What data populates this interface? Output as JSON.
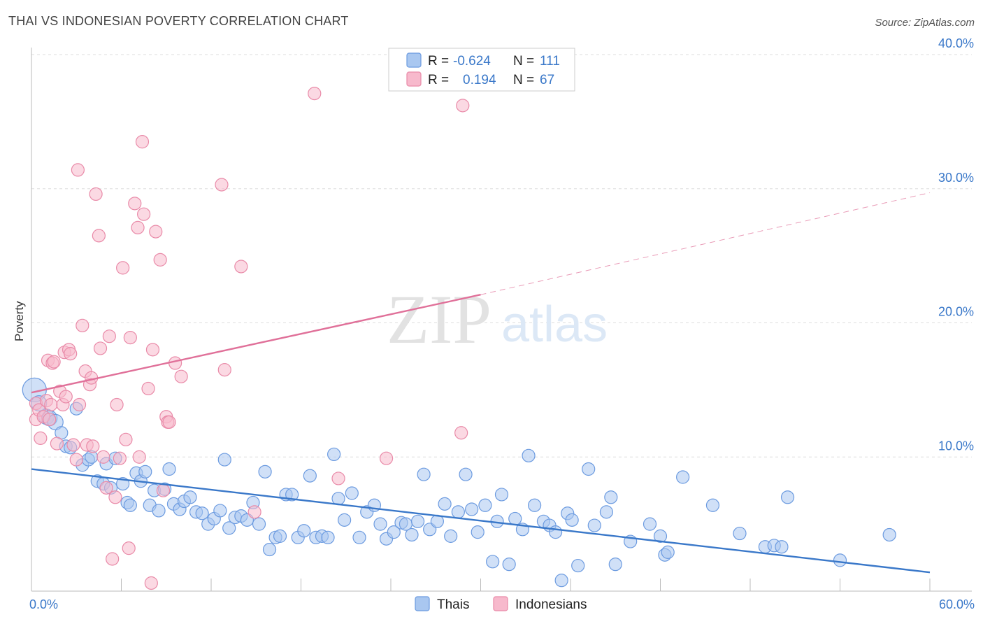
{
  "header": {
    "title": "THAI VS INDONESIAN POVERTY CORRELATION CHART",
    "source": "Source: ZipAtlas.com"
  },
  "watermark": {
    "zip": "ZIP",
    "atlas": "atlas"
  },
  "legend_stats": [
    {
      "r_label": "R =",
      "r_value": "-0.624",
      "n_label": "N =",
      "n_value": "111",
      "color": "#a9c7f0",
      "stroke": "#6c9be0"
    },
    {
      "r_label": "R =",
      "r_value": "0.194",
      "n_label": "N =",
      "n_value": "67",
      "color": "#f7b9cc",
      "stroke": "#e98aa8"
    }
  ],
  "chart_data": {
    "type": "scatter",
    "title": "THAI VS INDONESIAN POVERTY CORRELATION CHART",
    "xlabel": "",
    "ylabel": "Poverty",
    "xlim": [
      0,
      60
    ],
    "ylim": [
      0,
      40
    ],
    "x_tick_labels": [
      "0.0%",
      "60.0%"
    ],
    "y_ticks": [
      10,
      20,
      30,
      40
    ],
    "y_tick_labels": [
      "10.0%",
      "20.0%",
      "30.0%",
      "40.0%"
    ],
    "grid": true,
    "legend_position": "bottom",
    "series": [
      {
        "name": "Thais",
        "color": "#a9c7f0",
        "stroke": "#6c9be0",
        "trend": {
          "x": [
            0,
            60
          ],
          "y": [
            9.1,
            1.4
          ],
          "style": "solid"
        },
        "points": [
          [
            0.2,
            15.0
          ],
          [
            0.5,
            14.0
          ],
          [
            1.0,
            13.0
          ],
          [
            1.2,
            12.9
          ],
          [
            1.6,
            12.6
          ],
          [
            2.0,
            11.8
          ],
          [
            2.3,
            10.8
          ],
          [
            2.6,
            10.7
          ],
          [
            3.0,
            13.6
          ],
          [
            3.4,
            9.4
          ],
          [
            3.8,
            9.8
          ],
          [
            4.0,
            10.0
          ],
          [
            4.4,
            8.2
          ],
          [
            4.8,
            8.0
          ],
          [
            5.0,
            9.5
          ],
          [
            5.3,
            7.7
          ],
          [
            5.6,
            9.9
          ],
          [
            6.1,
            8.0
          ],
          [
            6.4,
            6.6
          ],
          [
            6.6,
            6.4
          ],
          [
            7.0,
            8.8
          ],
          [
            7.3,
            8.2
          ],
          [
            7.6,
            8.9
          ],
          [
            7.9,
            6.4
          ],
          [
            8.2,
            7.5
          ],
          [
            8.5,
            6.0
          ],
          [
            8.9,
            7.6
          ],
          [
            9.2,
            9.1
          ],
          [
            9.5,
            6.5
          ],
          [
            9.9,
            6.1
          ],
          [
            10.2,
            6.7
          ],
          [
            10.6,
            7.0
          ],
          [
            11.0,
            5.9
          ],
          [
            11.4,
            5.8
          ],
          [
            11.8,
            5.0
          ],
          [
            12.2,
            5.4
          ],
          [
            12.6,
            6.0
          ],
          [
            12.9,
            9.8
          ],
          [
            13.2,
            4.7
          ],
          [
            13.6,
            5.5
          ],
          [
            14.0,
            5.6
          ],
          [
            14.4,
            5.3
          ],
          [
            14.8,
            6.6
          ],
          [
            15.2,
            5.0
          ],
          [
            15.6,
            8.9
          ],
          [
            15.9,
            3.1
          ],
          [
            16.3,
            4.0
          ],
          [
            16.6,
            4.1
          ],
          [
            17.0,
            7.2
          ],
          [
            17.4,
            7.2
          ],
          [
            17.8,
            4.0
          ],
          [
            18.2,
            4.5
          ],
          [
            18.6,
            8.6
          ],
          [
            19.0,
            4.0
          ],
          [
            19.4,
            4.1
          ],
          [
            19.8,
            4.0
          ],
          [
            20.2,
            10.2
          ],
          [
            20.5,
            6.9
          ],
          [
            20.9,
            5.3
          ],
          [
            21.4,
            7.3
          ],
          [
            21.9,
            4.0
          ],
          [
            22.4,
            5.9
          ],
          [
            22.9,
            6.4
          ],
          [
            23.3,
            5.0
          ],
          [
            23.7,
            3.9
          ],
          [
            24.2,
            4.4
          ],
          [
            24.7,
            5.1
          ],
          [
            25.0,
            5.0
          ],
          [
            25.4,
            4.2
          ],
          [
            25.8,
            5.2
          ],
          [
            26.2,
            8.7
          ],
          [
            26.6,
            4.6
          ],
          [
            27.1,
            5.2
          ],
          [
            27.6,
            6.5
          ],
          [
            28.0,
            4.1
          ],
          [
            28.5,
            5.9
          ],
          [
            29.0,
            8.7
          ],
          [
            29.4,
            6.1
          ],
          [
            29.8,
            4.4
          ],
          [
            30.3,
            6.4
          ],
          [
            30.8,
            2.2
          ],
          [
            31.1,
            5.2
          ],
          [
            31.4,
            7.2
          ],
          [
            31.9,
            2.0
          ],
          [
            32.3,
            5.4
          ],
          [
            32.8,
            4.6
          ],
          [
            33.2,
            10.1
          ],
          [
            33.6,
            6.4
          ],
          [
            34.2,
            5.2
          ],
          [
            34.6,
            4.9
          ],
          [
            35.0,
            4.4
          ],
          [
            35.4,
            0.8
          ],
          [
            35.8,
            5.8
          ],
          [
            36.1,
            5.3
          ],
          [
            36.5,
            1.9
          ],
          [
            37.2,
            9.1
          ],
          [
            37.6,
            4.9
          ],
          [
            38.4,
            5.9
          ],
          [
            38.7,
            7.0
          ],
          [
            39.0,
            2.0
          ],
          [
            40.0,
            3.7
          ],
          [
            41.3,
            5.0
          ],
          [
            42.0,
            4.1
          ],
          [
            42.3,
            2.7
          ],
          [
            42.5,
            2.9
          ],
          [
            43.5,
            8.5
          ],
          [
            45.5,
            6.4
          ],
          [
            47.3,
            4.3
          ],
          [
            49.0,
            3.3
          ],
          [
            49.6,
            3.4
          ],
          [
            50.1,
            3.3
          ],
          [
            50.5,
            7.0
          ],
          [
            54.0,
            2.3
          ],
          [
            57.3,
            4.2
          ]
        ]
      },
      {
        "name": "Indonesians",
        "color": "#f7b9cc",
        "stroke": "#e98aa8",
        "trend": {
          "x": [
            0,
            30
          ],
          "y": [
            14.8,
            22.1
          ],
          "style": "solid",
          "extension": {
            "x": [
              30,
              60
            ],
            "y": [
              22.1,
              29.7
            ],
            "style": "dashed"
          }
        },
        "points": [
          [
            0.3,
            14.0
          ],
          [
            0.3,
            12.8
          ],
          [
            0.5,
            13.5
          ],
          [
            0.6,
            11.4
          ],
          [
            0.8,
            13.0
          ],
          [
            1.0,
            14.2
          ],
          [
            1.1,
            17.2
          ],
          [
            1.2,
            12.8
          ],
          [
            1.3,
            13.9
          ],
          [
            1.4,
            17.0
          ],
          [
            1.5,
            17.1
          ],
          [
            1.7,
            11.0
          ],
          [
            1.9,
            14.9
          ],
          [
            2.1,
            13.9
          ],
          [
            2.2,
            17.8
          ],
          [
            2.3,
            14.5
          ],
          [
            2.5,
            18.0
          ],
          [
            2.6,
            17.7
          ],
          [
            2.8,
            10.9
          ],
          [
            3.0,
            9.8
          ],
          [
            3.1,
            31.4
          ],
          [
            3.2,
            13.9
          ],
          [
            3.4,
            19.8
          ],
          [
            3.6,
            16.4
          ],
          [
            3.7,
            10.9
          ],
          [
            3.9,
            15.4
          ],
          [
            4.0,
            15.9
          ],
          [
            4.1,
            10.8
          ],
          [
            4.3,
            29.6
          ],
          [
            4.5,
            26.5
          ],
          [
            4.6,
            18.1
          ],
          [
            4.8,
            10.0
          ],
          [
            5.0,
            7.7
          ],
          [
            5.2,
            19.0
          ],
          [
            5.4,
            2.4
          ],
          [
            5.6,
            7.0
          ],
          [
            5.7,
            13.9
          ],
          [
            5.9,
            9.9
          ],
          [
            6.1,
            24.1
          ],
          [
            6.3,
            11.3
          ],
          [
            6.5,
            3.2
          ],
          [
            6.6,
            18.9
          ],
          [
            6.9,
            28.9
          ],
          [
            7.1,
            27.1
          ],
          [
            7.2,
            10.0
          ],
          [
            7.4,
            33.5
          ],
          [
            7.5,
            28.1
          ],
          [
            7.8,
            15.1
          ],
          [
            8.0,
            0.6
          ],
          [
            8.1,
            18.0
          ],
          [
            8.3,
            26.8
          ],
          [
            8.6,
            24.7
          ],
          [
            8.8,
            7.5
          ],
          [
            9.0,
            13.0
          ],
          [
            9.1,
            12.6
          ],
          [
            9.2,
            12.6
          ],
          [
            9.6,
            17.0
          ],
          [
            10.0,
            16.0
          ],
          [
            12.7,
            30.3
          ],
          [
            12.9,
            16.5
          ],
          [
            14.0,
            24.2
          ],
          [
            14.9,
            5.9
          ],
          [
            18.9,
            37.1
          ],
          [
            20.5,
            8.4
          ],
          [
            23.7,
            9.9
          ],
          [
            28.7,
            11.8
          ],
          [
            28.8,
            36.2
          ]
        ]
      }
    ]
  }
}
